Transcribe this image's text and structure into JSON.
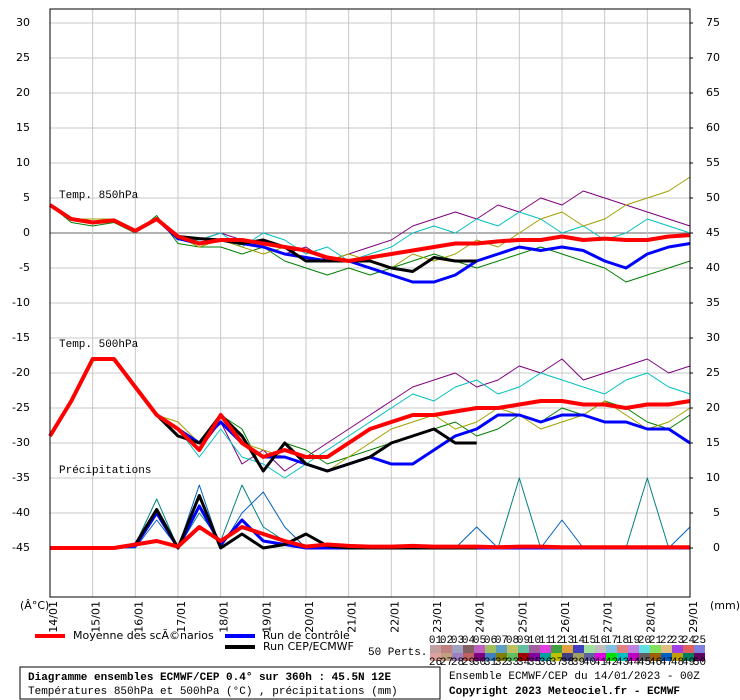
{
  "chart_data": {
    "type": "line",
    "title": "Diagramme ensembles ECMWF/CEP 0.4° sur 360h : 45.5N 12E",
    "subtitle": "Températures 850hPa et 500hPa (°C) , précipitations (mm)",
    "run_info": "Ensemble ECMWF/CEP du 14/01/2023 - 00Z",
    "copyright": "Copyright 2023 Meteociel.fr - ECMWF",
    "panel_labels": [
      "Temp. 850hPa",
      "Temp. 500hPa",
      "Précipitations"
    ],
    "y_unit": "(Â°C)",
    "y2_unit": "(mm)",
    "perturbation_count": "50 Perts.",
    "grid": true,
    "x": [
      0,
      0.5,
      1,
      1.5,
      2,
      2.5,
      3,
      3.5,
      4,
      4.5,
      5,
      5.5,
      6,
      6.5,
      7,
      7.5,
      8,
      8.5,
      9,
      9.5,
      10,
      10.5,
      11,
      11.5,
      12,
      12.5,
      13,
      13.5,
      14,
      14.5,
      15
    ],
    "xlim": [
      0,
      15
    ],
    "xticks": [
      {
        "value": 0,
        "label": "14/01"
      },
      {
        "value": 1,
        "label": "15/01"
      },
      {
        "value": 2,
        "label": "16/01"
      },
      {
        "value": 3,
        "label": "17/01"
      },
      {
        "value": 4,
        "label": "18/01"
      },
      {
        "value": 5,
        "label": "19/01"
      },
      {
        "value": 6,
        "label": "20/01"
      },
      {
        "value": 7,
        "label": "21/01"
      },
      {
        "value": 8,
        "label": "22/01"
      },
      {
        "value": 9,
        "label": "23/01"
      },
      {
        "value": 10,
        "label": "24/01"
      },
      {
        "value": 11,
        "label": "25/01"
      },
      {
        "value": 12,
        "label": "26/01"
      },
      {
        "value": 13,
        "label": "27/01"
      },
      {
        "value": 14,
        "label": "28/01"
      },
      {
        "value": 15,
        "label": "29/01"
      }
    ],
    "ylim": [
      -52,
      32
    ],
    "yticks": [
      30,
      25,
      20,
      15,
      10,
      5,
      0,
      -5,
      -10,
      -15,
      -20,
      -25,
      -30,
      -35,
      -40,
      -45
    ],
    "y2lim": [
      -7,
      77
    ],
    "y2ticks": [
      75,
      70,
      65,
      60,
      55,
      50,
      45,
      40,
      35,
      30,
      25,
      20,
      15,
      10,
      5,
      0
    ],
    "series": [
      {
        "name": "Moyenne des scÃ©narios",
        "color": "#ff0000",
        "width": 4,
        "values": [
          4,
          2,
          1.5,
          1.8,
          0.3,
          2,
          -0.5,
          -1.5,
          -1,
          -1,
          -1.5,
          -2,
          -2.5,
          -3.5,
          -4,
          -3.5,
          -3,
          -2.5,
          -2,
          -1.5,
          -1.5,
          -1.2,
          -1,
          -1,
          -0.5,
          -1,
          -0.8,
          -1,
          -1,
          -0.5,
          -0.3
        ]
      },
      {
        "name": "Run de contrôle",
        "color": "#0000ff",
        "width": 3,
        "values": [
          4,
          2,
          1.5,
          1.8,
          0.3,
          2,
          -0.8,
          -1.5,
          -1,
          -1.5,
          -2,
          -3,
          -3.5,
          -4,
          -4,
          -5,
          -6,
          -7,
          -7,
          -6,
          -4,
          -3,
          -2,
          -2.5,
          -2,
          -2.5,
          -4,
          -5,
          -3,
          -2,
          -1.5
        ]
      },
      {
        "name": "Run CEP/ECMWF",
        "color": "#000000",
        "width": 3,
        "values": [
          4,
          2,
          1.5,
          1.8,
          0.3,
          2,
          -0.5,
          -0.8,
          -1,
          -1.5,
          -1,
          -2,
          -4,
          -4,
          -4,
          -4,
          -5,
          -5.5,
          -3.5,
          -4,
          -4,
          null,
          null,
          null,
          null,
          null,
          null,
          null,
          null,
          null,
          null
        ]
      },
      {
        "color": "#800080",
        "width": 1,
        "values": [
          4,
          2,
          1.5,
          2,
          0.5,
          2,
          -1,
          -1,
          0,
          -1,
          -2,
          -3,
          -2,
          -4,
          -3,
          -2,
          -1,
          1,
          2,
          3,
          2,
          4,
          3,
          5,
          4,
          6,
          5,
          4,
          3,
          2,
          1
        ]
      },
      {
        "color": "#008000",
        "width": 1,
        "values": [
          4,
          1.5,
          1,
          1.5,
          0,
          2.5,
          -1.5,
          -2,
          -2,
          -3,
          -2,
          -4,
          -5,
          -6,
          -5,
          -6,
          -5,
          -4,
          -3,
          -4,
          -5,
          -4,
          -3,
          -2,
          -3,
          -4,
          -5,
          -7,
          -6,
          -5,
          -4
        ]
      },
      {
        "color": "#00c0c0",
        "width": 1,
        "values": [
          4,
          2,
          1.5,
          2,
          0,
          2,
          -1,
          -1,
          0,
          -2,
          0,
          -1,
          -3,
          -2,
          -4,
          -3,
          -2,
          0,
          1,
          0,
          2,
          1,
          3,
          2,
          0,
          1,
          -1,
          0,
          2,
          1,
          0
        ]
      },
      {
        "color": "#a0a000",
        "width": 1,
        "values": [
          4,
          2,
          2,
          2,
          0.5,
          2,
          -0.5,
          -2,
          -1,
          -2,
          -3,
          -2,
          -4,
          -4,
          -3,
          -4,
          -5,
          -3,
          -4,
          -3,
          -1,
          -2,
          0,
          2,
          3,
          1,
          2,
          4,
          5,
          6,
          8
        ]
      },
      {
        "color": "#ff0000",
        "width": 4,
        "values": [
          -29,
          -24,
          -18,
          -18,
          -22,
          -26,
          -28,
          -31,
          -26,
          -30,
          -32,
          -31,
          -32,
          -32,
          -30,
          -28,
          -27,
          -26,
          -26,
          -25.5,
          -25,
          -25,
          -24.5,
          -24,
          -24,
          -24.5,
          -24.5,
          -25,
          -24.5,
          -24.5,
          -24
        ]
      },
      {
        "color": "#0000ff",
        "width": 3,
        "values": [
          -29,
          -24,
          -18,
          -18,
          -22,
          -26,
          -28,
          -30,
          -27,
          -30,
          -32,
          -32,
          -33,
          -34,
          -33,
          -32,
          -33,
          -33,
          -31,
          -29,
          -28,
          -26,
          -26,
          -27,
          -26,
          -26,
          -27,
          -27,
          -28,
          -28,
          -30
        ]
      },
      {
        "color": "#000000",
        "width": 3,
        "values": [
          -29,
          -24,
          -18,
          -18,
          -22,
          -26,
          -29,
          -30,
          -26,
          -29,
          -34,
          -30,
          -33,
          -34,
          -33,
          -32,
          -30,
          -29,
          -28,
          -30,
          -30,
          null,
          null,
          null,
          null,
          null,
          null,
          null,
          null,
          null,
          null
        ]
      },
      {
        "color": "#800080",
        "width": 1,
        "values": [
          -29,
          -24,
          -18,
          -18,
          -22,
          -26,
          -28,
          -31,
          -27,
          -33,
          -31,
          -34,
          -32,
          -30,
          -28,
          -26,
          -24,
          -22,
          -21,
          -20,
          -22,
          -21,
          -19,
          -20,
          -18,
          -21,
          -20,
          -19,
          -18,
          -20,
          -19
        ]
      },
      {
        "color": "#008000",
        "width": 1,
        "values": [
          -29,
          -24,
          -18,
          -18,
          -22,
          -26,
          -29,
          -30,
          -26,
          -28,
          -34,
          -30,
          -31,
          -33,
          -32,
          -31,
          -30,
          -29,
          -28,
          -27,
          -29,
          -28,
          -26,
          -27,
          -25,
          -26,
          -24,
          -25,
          -27,
          -28,
          -26
        ]
      },
      {
        "color": "#00c0c0",
        "width": 1,
        "values": [
          -29,
          -24,
          -18,
          -18,
          -22,
          -26,
          -28,
          -32,
          -28,
          -32,
          -33,
          -35,
          -33,
          -31,
          -29,
          -27,
          -25,
          -23,
          -24,
          -22,
          -21,
          -23,
          -22,
          -20,
          -21,
          -22,
          -23,
          -21,
          -20,
          -22,
          -23
        ]
      },
      {
        "color": "#a0a000",
        "width": 1,
        "values": [
          -29,
          -24,
          -18,
          -18,
          -22,
          -26,
          -27,
          -30,
          -27,
          -30,
          -31,
          -32,
          -33,
          -34,
          -32,
          -30,
          -28,
          -27,
          -26,
          -28,
          -27,
          -25,
          -26,
          -28,
          -27,
          -26,
          -24,
          -26,
          -28,
          -27,
          -25
        ]
      },
      {
        "color": "#008080",
        "width": 1,
        "axis": "y2",
        "values": [
          0,
          0,
          0,
          0,
          0.5,
          7,
          0,
          5,
          1,
          9,
          3,
          1,
          0,
          0,
          0,
          0,
          0,
          0,
          0,
          0,
          0,
          0,
          10,
          0,
          0,
          0,
          0,
          0,
          10,
          0,
          0
        ]
      },
      {
        "color": "#0060c0",
        "width": 1,
        "axis": "y2",
        "values": [
          0,
          0,
          0,
          0,
          0,
          4,
          0,
          9,
          0,
          5,
          8,
          3,
          0,
          0,
          0,
          0,
          0,
          0,
          0,
          0,
          3,
          0,
          0,
          0,
          4,
          0,
          0,
          0,
          0,
          0,
          3
        ]
      },
      {
        "color": "#0000ff",
        "width": 3,
        "axis": "y2",
        "values": [
          0,
          0,
          0,
          0,
          0.3,
          5,
          0,
          6,
          0.5,
          4,
          1,
          0.5,
          0,
          0,
          0,
          0,
          0,
          0,
          0,
          0,
          0,
          0,
          0,
          0,
          0,
          0,
          0,
          0,
          0,
          0,
          0
        ]
      },
      {
        "color": "#ff0000",
        "width": 4,
        "axis": "y2",
        "values": [
          0,
          0,
          0,
          0,
          0.5,
          1,
          0.2,
          3,
          1,
          3,
          2,
          1,
          0.2,
          0.5,
          0.3,
          0.2,
          0.2,
          0.3,
          0.2,
          0.2,
          0.2,
          0.1,
          0.2,
          0.2,
          0.1,
          0.1,
          0.1,
          0.1,
          0.1,
          0.1,
          0.1
        ]
      },
      {
        "color": "#000000",
        "width": 3,
        "axis": "y2",
        "values": [
          0,
          0,
          0,
          0,
          0.5,
          5.5,
          0,
          7.5,
          0,
          2,
          0,
          0.5,
          2,
          0.3,
          0,
          0,
          0,
          0,
          0,
          0,
          0,
          null,
          null,
          null,
          null,
          null,
          null,
          null,
          null,
          null,
          null
        ]
      }
    ],
    "perturbation_key": [
      {
        "label": "01",
        "color": "#c0a0a0"
      },
      {
        "label": "02",
        "color": "#c08080"
      },
      {
        "label": "03",
        "color": "#a0a0c0"
      },
      {
        "label": "04",
        "color": "#806060"
      },
      {
        "label": "05",
        "color": "#c060c0"
      },
      {
        "label": "06",
        "color": "#a0c060"
      },
      {
        "label": "07",
        "color": "#60a0c0"
      },
      {
        "label": "08",
        "color": "#c0c060"
      },
      {
        "label": "09",
        "color": "#60c0a0"
      },
      {
        "label": "10",
        "color": "#a060a0"
      },
      {
        "label": "11",
        "color": "#e040e0"
      },
      {
        "label": "12",
        "color": "#40a040"
      },
      {
        "label": "13",
        "color": "#e0a040"
      },
      {
        "label": "14",
        "color": "#4040c0"
      },
      {
        "label": "15",
        "color": "#a0e0a0"
      },
      {
        "label": "16",
        "color": "#c0c0c0"
      },
      {
        "label": "17",
        "color": "#80c0e0"
      },
      {
        "label": "18",
        "color": "#e08080"
      },
      {
        "label": "19",
        "color": "#c080e0"
      },
      {
        "label": "20",
        "color": "#60e0e0"
      },
      {
        "label": "21",
        "color": "#80e060"
      },
      {
        "label": "22",
        "color": "#e0c080"
      },
      {
        "label": "23",
        "color": "#a040e0"
      },
      {
        "label": "24",
        "color": "#e06060"
      },
      {
        "label": "25",
        "color": "#8080e0"
      },
      {
        "label": "26",
        "color": "#e0a0a0"
      },
      {
        "label": "27",
        "color": "#c0a080"
      },
      {
        "label": "28",
        "color": "#a080c0"
      },
      {
        "label": "29",
        "color": "#c06060"
      },
      {
        "label": "30",
        "color": "#800080"
      },
      {
        "label": "31",
        "color": "#4080c0"
      },
      {
        "label": "32",
        "color": "#808000"
      },
      {
        "label": "33",
        "color": "#60c060"
      },
      {
        "label": "34",
        "color": "#a00000"
      },
      {
        "label": "35",
        "color": "#8000a0"
      },
      {
        "label": "36",
        "color": "#00a0a0"
      },
      {
        "label": "37",
        "color": "#c0c000"
      },
      {
        "label": "38",
        "color": "#404080"
      },
      {
        "label": "39",
        "color": "#a0a060"
      },
      {
        "label": "40",
        "color": "#6060a0"
      },
      {
        "label": "41",
        "color": "#e000e0"
      },
      {
        "label": "42",
        "color": "#00e000"
      },
      {
        "label": "43",
        "color": "#00c0c0"
      },
      {
        "label": "44",
        "color": "#c000c0"
      },
      {
        "label": "45",
        "color": "#606060"
      },
      {
        "label": "46",
        "color": "#a06000"
      },
      {
        "label": "47",
        "color": "#0060c0"
      },
      {
        "label": "48",
        "color": "#c0a000"
      },
      {
        "label": "49",
        "color": "#008060"
      },
      {
        "label": "50",
        "color": "#600060"
      }
    ]
  }
}
